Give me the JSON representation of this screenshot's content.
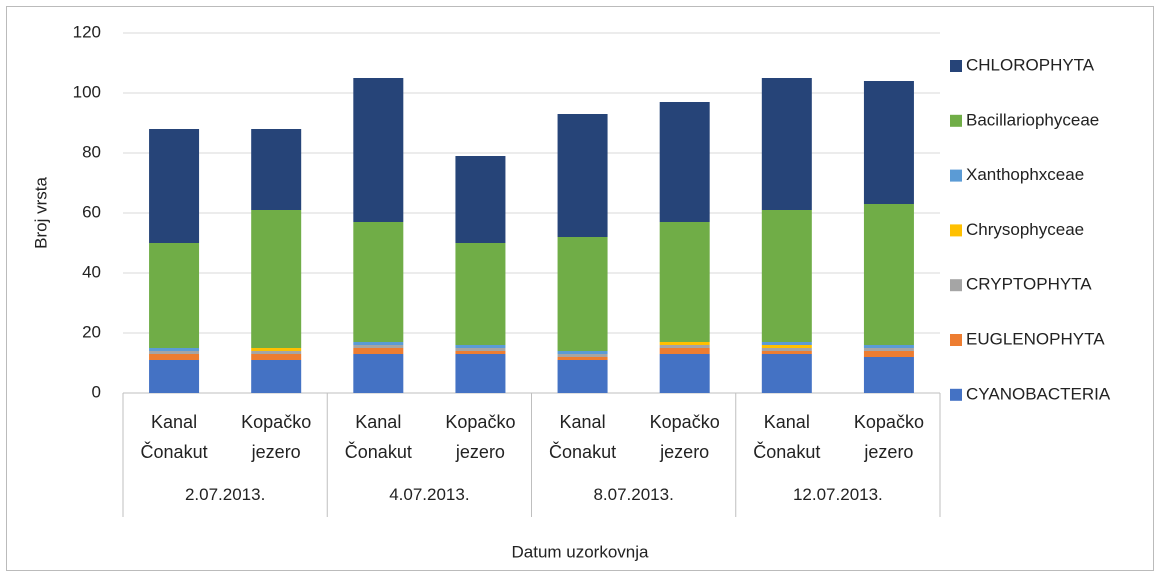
{
  "chart_data": {
    "type": "stacked_bar",
    "y_label": "Broj vrsta",
    "x_label": "Datum uzorkovnja",
    "groups": [
      {
        "label": "2.07.2013.",
        "categories": [
          "Kanal Čonakut",
          "Kopačko jezero"
        ]
      },
      {
        "label": "4.07.2013.",
        "categories": [
          "Kanal Čonakut",
          "Kopačko jezero"
        ]
      },
      {
        "label": "8.07.2013.",
        "categories": [
          "Kanal Čonakut",
          "Kopačko jezero"
        ]
      },
      {
        "label": "12.07.2013.",
        "categories": [
          "Kanal Čonakut",
          "Kopačko jezero"
        ]
      }
    ],
    "series": [
      {
        "name": "CYANOBACTERIA",
        "color": "#4472c4",
        "values": [
          11,
          11,
          13,
          13,
          11,
          13,
          13,
          12
        ]
      },
      {
        "name": "EUGLENOPHYTA",
        "color": "#ed7d31",
        "values": [
          2,
          2,
          2,
          1,
          1,
          2,
          1,
          2
        ]
      },
      {
        "name": "CRYPTOPHYTA",
        "color": "#a5a5a5",
        "values": [
          1,
          1,
          1,
          1,
          1,
          1,
          1,
          1
        ]
      },
      {
        "name": "Chrysophyceae",
        "color": "#ffc000",
        "values": [
          0,
          1,
          0,
          0,
          0,
          1,
          1,
          0
        ]
      },
      {
        "name": "Xanthophxceae",
        "color": "#5b9bd5",
        "values": [
          1,
          0,
          1,
          1,
          1,
          0,
          1,
          1
        ]
      },
      {
        "name": "Bacillariophyceae",
        "color": "#70ad47",
        "values": [
          35,
          46,
          40,
          34,
          38,
          40,
          44,
          47
        ]
      },
      {
        "name": "CHLOROPHYTA",
        "color": "#264478",
        "values": [
          38,
          27,
          48,
          29,
          41,
          40,
          44,
          41
        ]
      }
    ],
    "ylim": [
      0,
      120
    ],
    "yticks": [
      0,
      20,
      40,
      60,
      80,
      100,
      120
    ],
    "grid": true,
    "legend": "right"
  }
}
